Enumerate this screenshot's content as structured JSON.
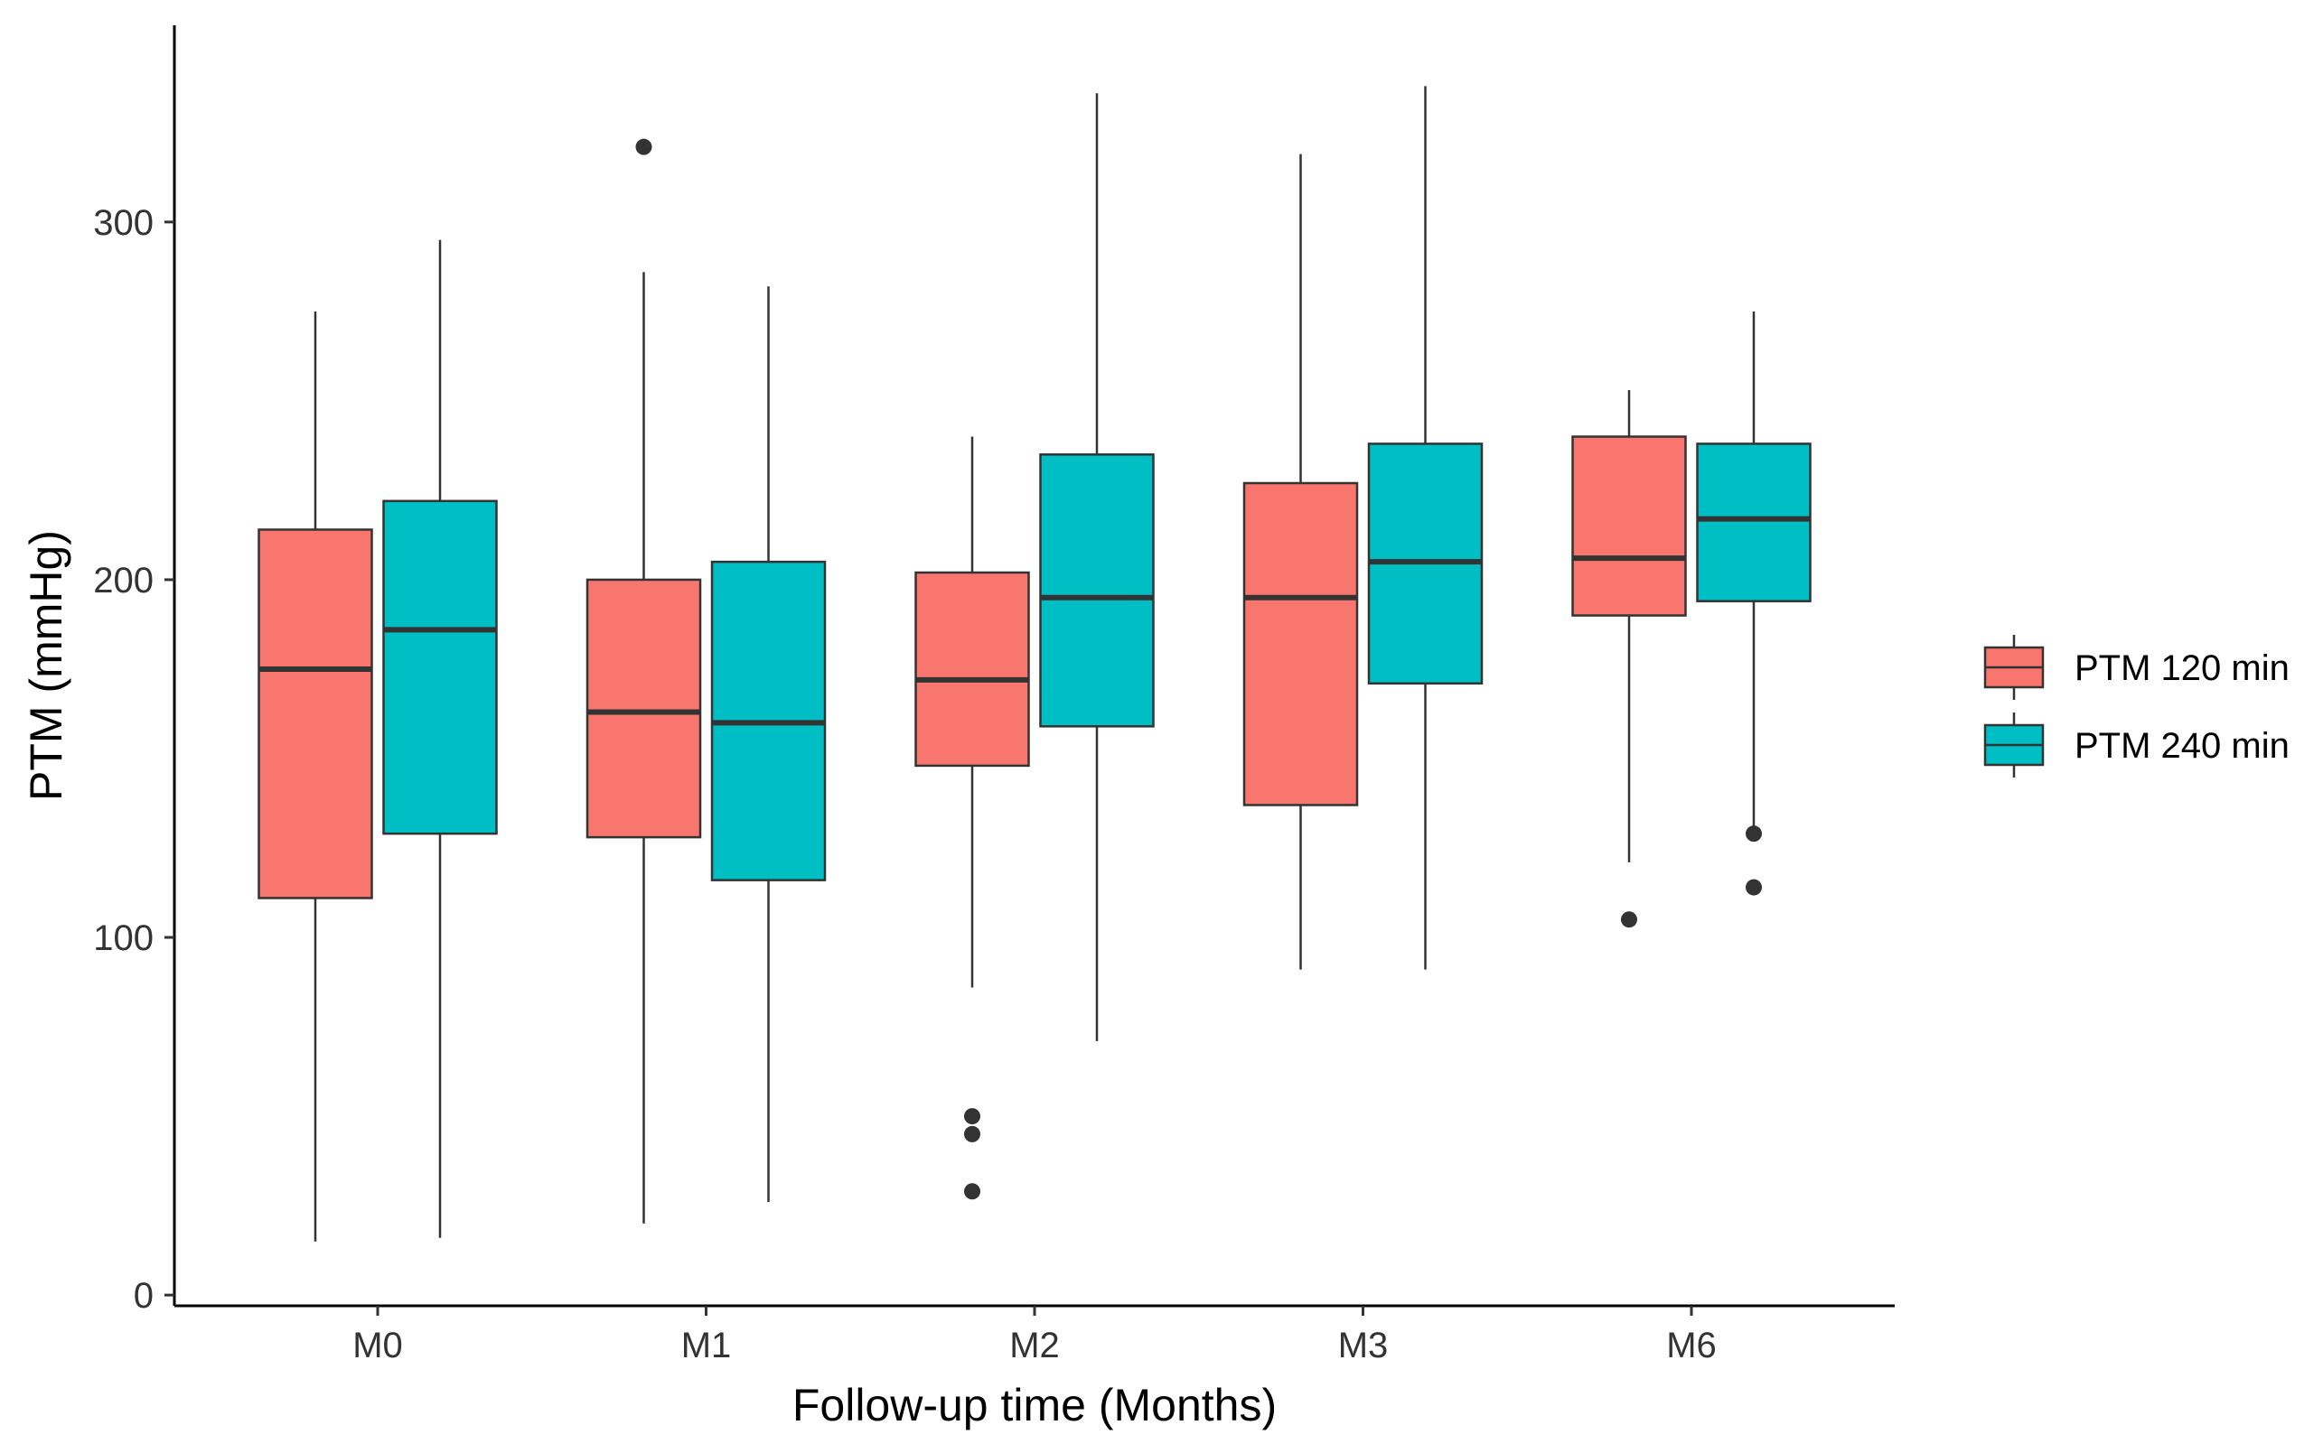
{
  "chart_data": {
    "type": "box",
    "title": "",
    "xlabel": "Follow-up time (Months)",
    "ylabel": "PTM (mmHg)",
    "categories": [
      "M0",
      "M1",
      "M2",
      "M3",
      "M6"
    ],
    "ylim": [
      -3,
      355
    ],
    "yticks": [
      0,
      100,
      200,
      300
    ],
    "grid": false,
    "legend_position": "right",
    "series": [
      {
        "name": "PTM 120 min",
        "color": "#F8766D",
        "boxes": [
          {
            "min": 15,
            "q1": 111,
            "median": 175,
            "q3": 214,
            "max": 275,
            "outliers": []
          },
          {
            "min": 20,
            "q1": 128,
            "median": 163,
            "q3": 200,
            "max": 286,
            "outliers": [
              321
            ]
          },
          {
            "min": 86,
            "q1": 148,
            "median": 172,
            "q3": 202,
            "max": 240,
            "outliers": [
              50,
              45,
              29
            ]
          },
          {
            "min": 91,
            "q1": 137,
            "median": 195,
            "q3": 227,
            "max": 319,
            "outliers": []
          },
          {
            "min": 121,
            "q1": 190,
            "median": 206,
            "q3": 240,
            "max": 253,
            "outliers": [
              105
            ]
          }
        ]
      },
      {
        "name": "PTM 240 min",
        "color": "#00BFC4",
        "boxes": [
          {
            "min": 16,
            "q1": 129,
            "median": 186,
            "q3": 222,
            "max": 295,
            "outliers": []
          },
          {
            "min": 26,
            "q1": 116,
            "median": 160,
            "q3": 205,
            "max": 282,
            "outliers": []
          },
          {
            "min": 71,
            "q1": 159,
            "median": 195,
            "q3": 235,
            "max": 336,
            "outliers": []
          },
          {
            "min": 91,
            "q1": 171,
            "median": 205,
            "q3": 238,
            "max": 338,
            "outliers": []
          },
          {
            "min": 129,
            "q1": 194,
            "median": 217,
            "q3": 238,
            "max": 275,
            "outliers": [
              129,
              114
            ]
          }
        ]
      }
    ]
  }
}
